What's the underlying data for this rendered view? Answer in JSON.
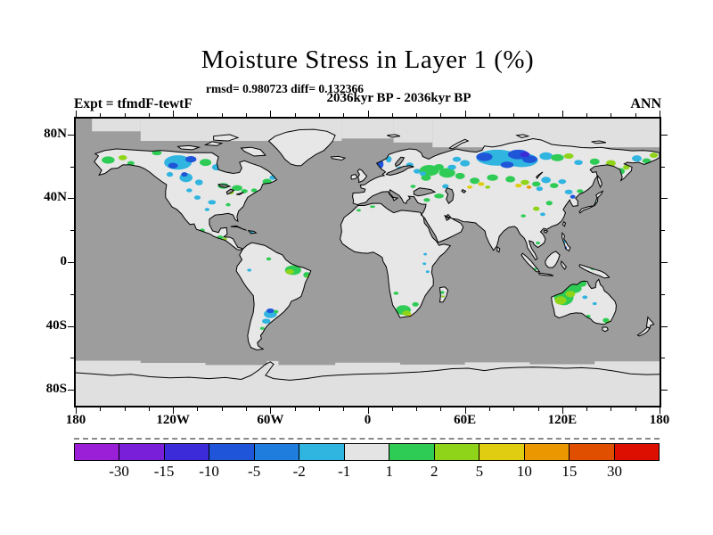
{
  "title": "Moisture Stress in Layer 1 (%)",
  "stats_line": "rmsd= 0.980723 diff= 0.132366",
  "period_line": "2036kyr BP - 2036kyr BP",
  "expt_label": "Expt = tfmdF-tewtF",
  "season_label": "ANN",
  "axes": {
    "lat_ticks": [
      {
        "label": "80N",
        "deg": 80
      },
      {
        "label": "40N",
        "deg": 40
      },
      {
        "label": "0",
        "deg": 0
      },
      {
        "label": "40S",
        "deg": -40
      },
      {
        "label": "80S",
        "deg": -80
      }
    ],
    "lon_ticks": [
      {
        "label": "180",
        "deg": -180
      },
      {
        "label": "120W",
        "deg": -120
      },
      {
        "label": "60W",
        "deg": -60
      },
      {
        "label": "0",
        "deg": 0
      },
      {
        "label": "60E",
        "deg": 60
      },
      {
        "label": "120E",
        "deg": 120
      },
      {
        "label": "180",
        "deg": 180
      }
    ],
    "lon_minor_step_deg": 15,
    "lat_minor_step_deg": 20
  },
  "chart_data": {
    "type": "heatmap",
    "subtype": "filled-contour-anomaly-map",
    "projection": "equirectangular",
    "units": "%",
    "lon_range": [
      -180,
      180
    ],
    "lat_range": [
      -90,
      90
    ],
    "levels": [
      -30,
      -15,
      -10,
      -5,
      -2,
      -1,
      1,
      2,
      5,
      10,
      15,
      30
    ],
    "palette": [
      "#9a1fd6",
      "#7a1fd9",
      "#3c2bd9",
      "#1f55d9",
      "#1e7ddd",
      "#30b4e0",
      "#e4e4e4",
      "#2ecc55",
      "#8fd419",
      "#e0cc11",
      "#eb9800",
      "#e04f00",
      "#dd0f00"
    ],
    "ocean_color": "#9d9d9d",
    "land_color": "#e7e7e7",
    "polar_ice_color": "#e0e0e0",
    "legend_position": "bottom",
    "patch_format": [
      "lon_deg",
      "lat_deg",
      "rx_deg",
      "ry_deg",
      "value_percent"
    ],
    "anomaly_patches": [
      [
        -160,
        64,
        4,
        2.3,
        1.5
      ],
      [
        -151,
        65.5,
        2.6,
        1.6,
        3
      ],
      [
        -146,
        62,
        2.2,
        1.4,
        1.5
      ],
      [
        -130,
        68.5,
        3,
        1.5,
        1.5
      ],
      [
        -118,
        70.5,
        3,
        1.5,
        1.5
      ],
      [
        -117,
        62.5,
        8.5,
        4.5,
        -1.5
      ],
      [
        -120,
        60.5,
        3,
        1.8,
        -7
      ],
      [
        -109,
        64.5,
        3.4,
        2,
        -7
      ],
      [
        -100,
        62.5,
        3.6,
        2.2,
        1.5
      ],
      [
        -93,
        59.5,
        3,
        2,
        -1.5
      ],
      [
        -112,
        53,
        4,
        2.8,
        -1.5
      ],
      [
        -113,
        55,
        2,
        1.4,
        -7
      ],
      [
        -104,
        50,
        2.4,
        1.8,
        -1.5
      ],
      [
        -122,
        55,
        2,
        1.5,
        -1.5
      ],
      [
        -89,
        47.8,
        3.4,
        1.8,
        1.5
      ],
      [
        -80.5,
        46.5,
        3.2,
        1.8,
        1.5
      ],
      [
        -84.5,
        43.8,
        2,
        1.3,
        3
      ],
      [
        -76,
        44.5,
        2,
        1.3,
        1.5
      ],
      [
        -62,
        50.5,
        2.8,
        1.8,
        1.5
      ],
      [
        -58.5,
        53,
        2,
        1.4,
        -1.5
      ],
      [
        -70,
        45,
        1.8,
        1.2,
        1.5
      ],
      [
        -105,
        40.5,
        2,
        1.3,
        -1.5
      ],
      [
        -96,
        37.5,
        2.4,
        1.4,
        -1.5
      ],
      [
        -99,
        33,
        1.5,
        1,
        -1.5
      ],
      [
        -86,
        36,
        1.5,
        1,
        1.5
      ],
      [
        -110,
        45,
        1.8,
        1.2,
        -1.5
      ],
      [
        -102,
        20,
        1.6,
        1,
        1.5
      ],
      [
        -91,
        15.5,
        2,
        1.2,
        1.5
      ],
      [
        -88,
        14.5,
        1.3,
        0.8,
        3
      ],
      [
        -79,
        21.5,
        1.7,
        0.8,
        -1.5
      ],
      [
        -71.5,
        19,
        1.4,
        0.7,
        -1.5
      ],
      [
        -46,
        -5,
        5,
        3,
        1.5
      ],
      [
        -48,
        -6,
        2.6,
        1.6,
        3
      ],
      [
        -37.5,
        -8,
        2.2,
        1.8,
        1.5
      ],
      [
        -36.5,
        -9,
        1.2,
        0.8,
        3
      ],
      [
        -61,
        2,
        1.5,
        1,
        1.5
      ],
      [
        -73,
        -5,
        1.3,
        0.9,
        -1.5
      ],
      [
        -60,
        -32.5,
        4,
        2.6,
        -1.5
      ],
      [
        -60,
        -30.5,
        2.4,
        1.4,
        -7
      ],
      [
        -62.5,
        -37,
        2.6,
        1.6,
        -1.5
      ],
      [
        -56.5,
        -31,
        1.5,
        1,
        1.5
      ],
      [
        -65,
        -41.5,
        1.3,
        0.9,
        1.5
      ],
      [
        22,
        -30,
        4.6,
        3,
        1.5
      ],
      [
        24,
        -32,
        2.6,
        1.6,
        3
      ],
      [
        26.5,
        -33.5,
        1.6,
        0.9,
        7
      ],
      [
        29.5,
        -26.5,
        2,
        1.4,
        1.5
      ],
      [
        17.5,
        -19.5,
        1.6,
        1,
        1.5
      ],
      [
        35,
        -1,
        1.1,
        0.8,
        -1.5
      ],
      [
        37,
        -6,
        1.1,
        0.8,
        -1.5
      ],
      [
        35.5,
        5,
        1.1,
        0.8,
        -1.5
      ],
      [
        46,
        -19,
        1.3,
        0.9,
        1.5
      ],
      [
        46.5,
        -21.5,
        1,
        0.6,
        3
      ],
      [
        3,
        34.8,
        1.6,
        0.8,
        1.5
      ],
      [
        -5.5,
        32.5,
        1.3,
        0.8,
        1.5
      ],
      [
        7.8,
        61.5,
        2,
        2.8,
        -7
      ],
      [
        13,
        64.5,
        1.8,
        2,
        -1.5
      ],
      [
        20,
        58.5,
        2.2,
        1.5,
        -1.5
      ],
      [
        26,
        61,
        2.2,
        1.5,
        -1.5
      ],
      [
        30.5,
        57,
        2.2,
        1.5,
        -1.5
      ],
      [
        38,
        57.5,
        6,
        3.4,
        1.5
      ],
      [
        49,
        56,
        5,
        3,
        1.5
      ],
      [
        44,
        59.5,
        3,
        2,
        1.5
      ],
      [
        36,
        53,
        3,
        2,
        1.5
      ],
      [
        34,
        55.5,
        2,
        1.4,
        -1.5
      ],
      [
        52,
        59.5,
        2.6,
        1.6,
        -1.5
      ],
      [
        28,
        47.5,
        1.6,
        1,
        1.5
      ],
      [
        44,
        41.5,
        3,
        1.5,
        1.5
      ],
      [
        36.5,
        39,
        2,
        1.2,
        1.5
      ],
      [
        48,
        47.5,
        2,
        1.4,
        -1.5
      ],
      [
        80,
        65.5,
        13,
        5,
        -1.5
      ],
      [
        95,
        64,
        10,
        4.4,
        -1.5
      ],
      [
        72,
        66,
        5,
        2.6,
        -7
      ],
      [
        93,
        67.5,
        6.5,
        3,
        -7
      ],
      [
        100,
        64.5,
        4.6,
        2.4,
        -7
      ],
      [
        86,
        61,
        4,
        2,
        -7
      ],
      [
        97,
        67.5,
        3,
        1.6,
        -12
      ],
      [
        60,
        62,
        3,
        2,
        -1.5
      ],
      [
        55,
        64.5,
        2.6,
        1.6,
        -1.5
      ],
      [
        110,
        66.5,
        4,
        2.4,
        -1.5
      ],
      [
        117,
        65.5,
        4,
        2.2,
        1.5
      ],
      [
        124,
        66.5,
        3,
        1.7,
        3
      ],
      [
        130,
        62.5,
        2.6,
        1.6,
        -1.5
      ],
      [
        140,
        63,
        3,
        2,
        1.5
      ],
      [
        150,
        62,
        3,
        2,
        3
      ],
      [
        156,
        57,
        2.6,
        2,
        1.5
      ],
      [
        159.5,
        59.5,
        2,
        1.5,
        3
      ],
      [
        166,
        65,
        3,
        2,
        -1.5
      ],
      [
        172,
        63.5,
        2.6,
        1.6,
        1.5
      ],
      [
        176.5,
        67,
        2.6,
        1.6,
        3
      ],
      [
        57,
        54,
        3,
        2,
        1.5
      ],
      [
        66,
        51,
        3,
        2,
        1.5
      ],
      [
        77,
        53,
        3.4,
        2,
        1.5
      ],
      [
        70,
        49,
        2,
        1.2,
        7
      ],
      [
        74,
        47,
        1.6,
        1,
        3
      ],
      [
        63,
        47,
        1.7,
        1,
        7
      ],
      [
        88,
        52,
        3,
        2,
        1.5
      ],
      [
        97,
        50,
        2.6,
        1.6,
        3
      ],
      [
        93,
        48,
        2,
        1.2,
        7
      ],
      [
        99.5,
        47,
        1.5,
        1,
        12
      ],
      [
        104,
        49,
        2.6,
        1.6,
        1.5
      ],
      [
        110,
        51.5,
        3,
        2,
        -1.5
      ],
      [
        106,
        46,
        2,
        1.4,
        -1.5
      ],
      [
        115,
        48,
        2.6,
        1.6,
        1.5
      ],
      [
        120,
        50.5,
        2.4,
        1.5,
        -1.5
      ],
      [
        124,
        44,
        2.4,
        1.5,
        -1.5
      ],
      [
        126.5,
        41,
        1.6,
        1.2,
        -7
      ],
      [
        131,
        44.5,
        2,
        1.2,
        1.5
      ],
      [
        112,
        37,
        2,
        1.4,
        1.5
      ],
      [
        104,
        33.5,
        2,
        1.4,
        3
      ],
      [
        108,
        30,
        1.6,
        1.1,
        -1.5
      ],
      [
        96,
        29,
        1.5,
        1,
        1.5
      ],
      [
        133.5,
        35,
        1.2,
        0.8,
        -1.5
      ],
      [
        140,
        38,
        1.2,
        0.8,
        -1.5
      ],
      [
        121,
        12.5,
        1.1,
        1.3,
        -1.5
      ],
      [
        122,
        9,
        0.9,
        0.9,
        -7
      ],
      [
        105,
        12,
        1.3,
        0.9,
        1.5
      ],
      [
        103,
        -4.5,
        1.3,
        0.9,
        1.5
      ],
      [
        106.5,
        -6.5,
        1.6,
        0.7,
        1.5
      ],
      [
        139,
        -4,
        1.6,
        1,
        1.5
      ],
      [
        144.5,
        -5,
        1.3,
        0.9,
        -1.5
      ],
      [
        121,
        -22,
        6,
        5,
        1.5
      ],
      [
        127,
        -16.5,
        5,
        3,
        1.5
      ],
      [
        132,
        -13.5,
        3,
        2,
        1.5
      ],
      [
        119,
        -24,
        3.6,
        2.6,
        3
      ],
      [
        125,
        -20,
        3,
        2,
        3
      ],
      [
        134,
        -22,
        1.6,
        1.1,
        -1.5
      ],
      [
        140,
        -26,
        1.3,
        0.9,
        -1.5
      ],
      [
        147,
        -36.5,
        2,
        1.5,
        1.5
      ],
      [
        149,
        -37.5,
        1.2,
        0.8,
        3
      ],
      [
        136,
        -34,
        1.5,
        1,
        1.5
      ]
    ]
  }
}
